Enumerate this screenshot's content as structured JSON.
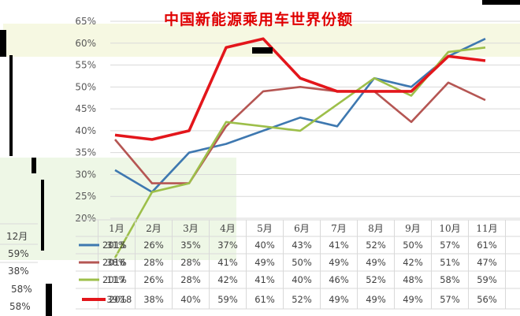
{
  "chart_data": {
    "type": "line",
    "title": "中国新能源乘用车世界份额",
    "y_ticks": [
      "65%",
      "60%",
      "55%",
      "50%",
      "45%",
      "40%",
      "35%",
      "30%",
      "25%",
      "20%"
    ],
    "ylim": [
      20,
      65
    ],
    "grid": true,
    "categories": [
      "1月",
      "2月",
      "3月",
      "4月",
      "5月",
      "6月",
      "7月",
      "8月",
      "9月",
      "10月",
      "11月"
    ],
    "series": [
      {
        "name": "2015",
        "color": "#3e78b0",
        "values": [
          31,
          26,
          35,
          37,
          40,
          43,
          41,
          52,
          50,
          57,
          61
        ],
        "labels": [
          "31%",
          "26%",
          "35%",
          "37%",
          "40%",
          "43%",
          "41%",
          "52%",
          "50%",
          "57%",
          "61%"
        ]
      },
      {
        "name": "2016",
        "color": "#b55653",
        "values": [
          38,
          28,
          28,
          41,
          49,
          50,
          49,
          49,
          42,
          51,
          47
        ],
        "labels": [
          "38%",
          "28%",
          "28%",
          "41%",
          "49%",
          "50%",
          "49%",
          "49%",
          "42%",
          "51%",
          "47%"
        ]
      },
      {
        "name": "2017",
        "color": "#9dbf4a",
        "values": [
          11,
          26,
          28,
          42,
          41,
          40,
          46,
          52,
          48,
          58,
          59
        ],
        "labels": [
          "11%",
          "26%",
          "28%",
          "42%",
          "41%",
          "40%",
          "46%",
          "52%",
          "48%",
          "58%",
          "59%"
        ]
      },
      {
        "name": "2018",
        "color": "#e3161b",
        "values": [
          39,
          38,
          40,
          59,
          61,
          52,
          49,
          49,
          49,
          57,
          56
        ],
        "labels": [
          "39%",
          "38%",
          "40%",
          "59%",
          "61%",
          "52%",
          "49%",
          "49%",
          "49%",
          "57%",
          "56%"
        ]
      }
    ],
    "extra_column": {
      "header": "12月",
      "values": [
        "59%",
        "38%",
        "58%"
      ],
      "last_value": "58%"
    }
  }
}
